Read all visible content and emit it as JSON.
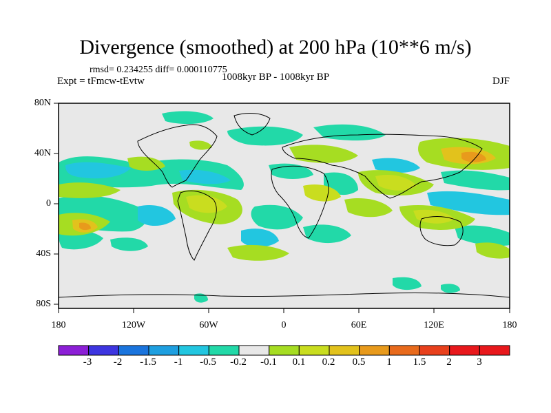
{
  "title": "Divergence (smoothed) at 200 hPa (10**6 m/s)",
  "stats": "rmsd= 0.234255 diff= 0.000110775",
  "expt": "Expt = tFmcw-tEvtw",
  "period": "1008kyr BP - 1008kyr BP",
  "season": "DJF",
  "lat_labels": [
    "80N",
    "40N",
    "0",
    "40S",
    "80S"
  ],
  "lon_labels": [
    "180",
    "120W",
    "60W",
    "0",
    "60E",
    "120E",
    "180"
  ],
  "colorbar": {
    "labels": [
      "-3",
      "-2",
      "-1.5",
      "-1",
      "-0.5",
      "-0.2",
      "-0.1",
      "0.1",
      "0.2",
      "0.5",
      "1",
      "1.5",
      "2",
      "3"
    ],
    "colors": [
      "#8c1fd6",
      "#3d35e0",
      "#1a74dd",
      "#1e9fe0",
      "#22c6e0",
      "#22d9a8",
      "#e8e8e8",
      "#a6dd22",
      "#c9dd1f",
      "#e2c21c",
      "#e89a1c",
      "#e86a1c",
      "#e8401c",
      "#e8181c"
    ]
  },
  "colors": {
    "neg_light": "#22d9a8",
    "neg_mid": "#22c6e0",
    "neg_strong": "#1e9fe0",
    "pos_light": "#a6dd22",
    "pos_mid": "#c9dd1f",
    "pos_strong": "#e2c21c",
    "pos_stronger": "#e89a1c",
    "background": "#e8e8e8"
  }
}
